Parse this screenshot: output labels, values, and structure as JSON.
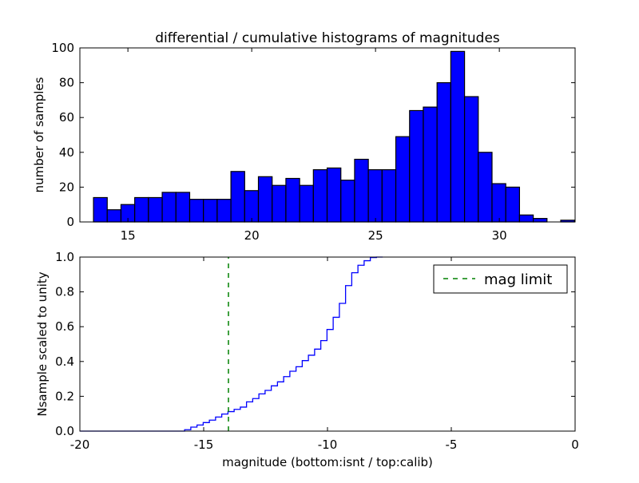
{
  "chart_data": [
    {
      "type": "bar",
      "title": "differential / cumulative histograms of magnitudes",
      "xlabel": "",
      "ylabel": "number of samples",
      "xlim": [
        13.06,
        33.06
      ],
      "ylim": [
        0,
        100
      ],
      "xticks": [
        15,
        20,
        25,
        30
      ],
      "yticks": [
        0,
        20,
        40,
        60,
        80,
        100
      ],
      "bin_start": 13.61,
      "bin_width": 0.555,
      "values": [
        14,
        7,
        10,
        14,
        14,
        17,
        17,
        13,
        13,
        13,
        29,
        18,
        26,
        21,
        25,
        21,
        30,
        31,
        24,
        36,
        30,
        30,
        49,
        64,
        66,
        80,
        98,
        72,
        40,
        22,
        20,
        4,
        2,
        0,
        1
      ],
      "color": "#0000ff"
    },
    {
      "type": "line",
      "xlabel": "magnitude (bottom:isnt / top:calib)",
      "ylabel": "Nsample scaled to unity",
      "xlim": [
        -20,
        0
      ],
      "ylim": [
        0,
        1
      ],
      "xticks": [
        -20,
        -15,
        -10,
        -5,
        0
      ],
      "yticks": [
        "0.0",
        "0.2",
        "0.4",
        "0.6",
        "0.8",
        "1.0"
      ],
      "step_start": -15.77,
      "step_width": 0.25,
      "step_values": [
        0.008,
        0.023,
        0.035,
        0.049,
        0.063,
        0.081,
        0.098,
        0.112,
        0.125,
        0.138,
        0.168,
        0.187,
        0.214,
        0.234,
        0.26,
        0.283,
        0.313,
        0.344,
        0.37,
        0.405,
        0.436,
        0.471,
        0.52,
        0.584,
        0.654,
        0.734,
        0.836,
        0.91,
        0.953,
        0.979,
        0.997,
        1.0
      ],
      "line_color": "#0000ff",
      "mag_limit": -14,
      "mag_limit_color": "#008000",
      "legend": {
        "label": "mag limit",
        "placement": "top-right"
      }
    }
  ]
}
